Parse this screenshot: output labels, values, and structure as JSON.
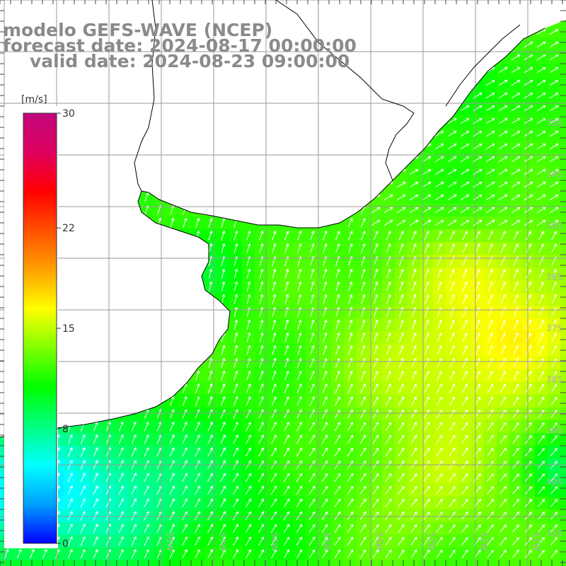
{
  "title": {
    "line1": "modelo GEFS-WAVE (NCEP)",
    "line2": "forecast date: 2024-08-17 00:00:00",
    "line3": "valid date: 2024-08-23 09:00:00"
  },
  "colorbar": {
    "unit": "[m/s]",
    "min": 0,
    "max": 30,
    "ticks": [
      {
        "value": 30,
        "label": "30"
      },
      {
        "value": 22,
        "label": "22"
      },
      {
        "value": 15,
        "label": "15"
      },
      {
        "value": 8,
        "label": "8"
      },
      {
        "value": 0,
        "label": "0"
      }
    ],
    "colors": [
      "#0000ff",
      "#00a0ff",
      "#00ffff",
      "#00ff80",
      "#00ff00",
      "#80ff00",
      "#ffff00",
      "#ffa000",
      "#ff5000",
      "#ff0000",
      "#e00060",
      "#c0087a"
    ]
  },
  "map": {
    "lon_range": [
      -60,
      -49.5
    ],
    "lat_range": [
      -41.5,
      -30.5
    ],
    "lon_labels": [
      "58W",
      "57W",
      "56W",
      "55W",
      "54W",
      "53W",
      "52W",
      "51W",
      "50W"
    ],
    "lat_labels": [
      "33S",
      "34S",
      "35S",
      "36S",
      "37S",
      "38S",
      "39S",
      "40S",
      "41S"
    ],
    "grid_color": "#9a9a9a",
    "land_color": "#ffffff",
    "arrow_color": "#ffffff"
  }
}
